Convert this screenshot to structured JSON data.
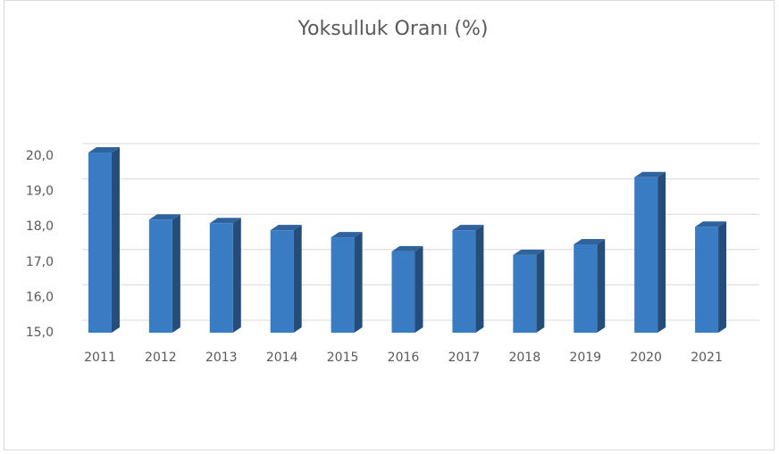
{
  "chart_data": {
    "type": "bar3d",
    "title": "Yoksulluk Oranı (%)",
    "categories": [
      "2011",
      "2012",
      "2013",
      "2014",
      "2015",
      "2016",
      "2017",
      "2018",
      "2019",
      "2020",
      "2021"
    ],
    "values": [
      20.1,
      18.2,
      18.1,
      17.9,
      17.7,
      17.3,
      17.9,
      17.2,
      17.5,
      19.4,
      18.0
    ],
    "color": "#3a7cc4",
    "ylim": [
      15,
      20
    ],
    "yticks": [
      {
        "value": 15,
        "label": "15,0"
      },
      {
        "value": 16,
        "label": "16,0"
      },
      {
        "value": 17,
        "label": "17,0"
      },
      {
        "value": 18,
        "label": "18,0"
      },
      {
        "value": 19,
        "label": "19,0"
      },
      {
        "value": 20,
        "label": "20,0"
      }
    ],
    "grid": true
  }
}
